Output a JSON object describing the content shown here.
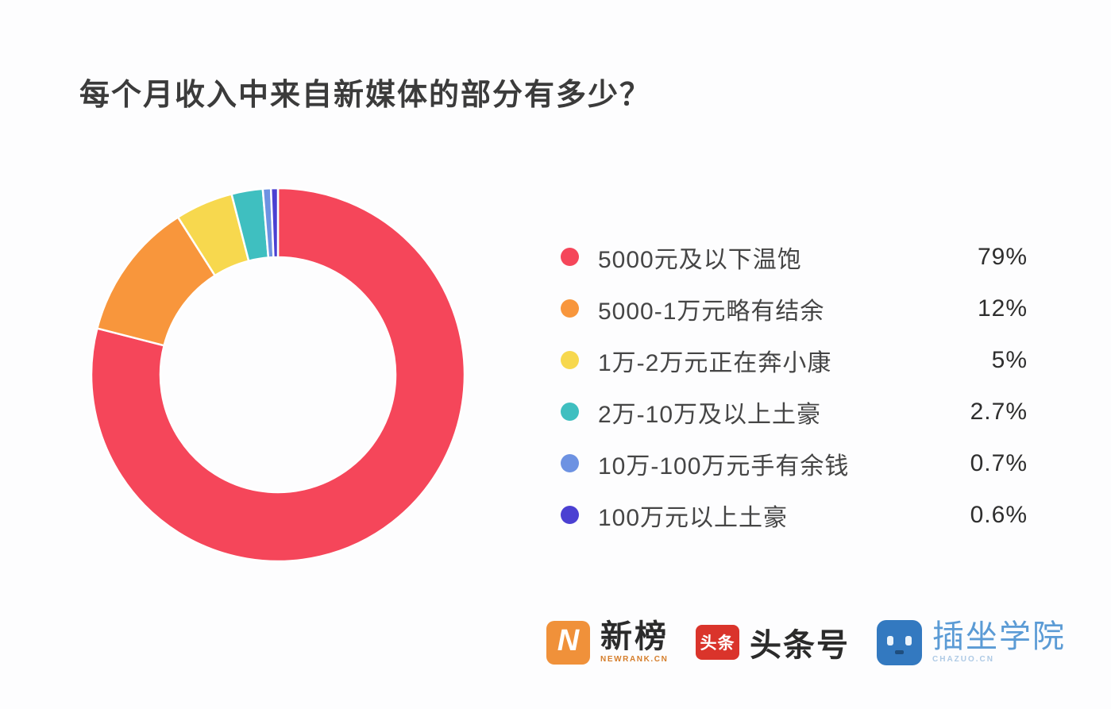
{
  "page": {
    "title": "每个月收入中来自新媒体的部分有多少？"
  },
  "chart_data": {
    "type": "pie",
    "subtype": "donut",
    "title": "每个月收入中来自新媒体的部分有多少？",
    "legend_position": "right",
    "start_angle": "top",
    "direction": "clockwise",
    "inner_radius_ratio": 0.63,
    "slice_gap_color": "#ffffff",
    "items": [
      {
        "label": "5000元及以下温饱",
        "value": 79,
        "value_label": "79%",
        "color": "#f5465a"
      },
      {
        "label": "5000-1万元略有结余",
        "value": 12,
        "value_label": "12%",
        "color": "#f8963c"
      },
      {
        "label": "1万-2万元正在奔小康",
        "value": 5,
        "value_label": "5%",
        "color": "#f7d84e"
      },
      {
        "label": "2万-10万及以上土豪",
        "value": 2.7,
        "value_label": "2.7%",
        "color": "#3fbfc0"
      },
      {
        "label": "10万-100万元手有余钱",
        "value": 0.7,
        "value_label": "0.7%",
        "color": "#6d92e2"
      },
      {
        "label": "100万元以上土豪",
        "value": 0.6,
        "value_label": "0.6%",
        "color": "#4b40d2"
      }
    ]
  },
  "footer": {
    "newrank": {
      "icon_letter": "N",
      "name": "新榜",
      "subtext": "NEWRANK.CN",
      "brand_color": "#f0913a"
    },
    "toutiao": {
      "icon_text": "头条",
      "name": "头条号",
      "brand_color": "#da342b"
    },
    "chazuo": {
      "name": "插坐学院",
      "subtext": "CHAZUO.CN",
      "brand_color": "#3379c0"
    }
  }
}
